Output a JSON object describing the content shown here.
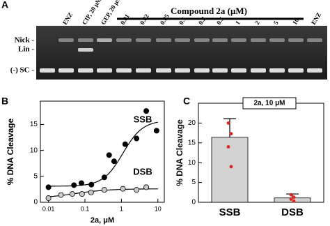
{
  "gel": {
    "label": "A",
    "title": "Compound 2a (μM)",
    "lanes": [
      "ENZ",
      "CIP, 20 μM",
      "GEP, 20 μM",
      "0.01",
      "0.02",
      "0.05",
      "0.1",
      "0.2",
      "0.5",
      "1",
      "2",
      "5",
      "10",
      "ENZ"
    ],
    "bands": [
      "Nick -",
      "Lin -",
      "(-) SC -"
    ]
  },
  "chart_data": [
    {
      "type": "scatter",
      "label": "B",
      "xlabel": "2a, μM",
      "ylabel": "% DNA Cleavage",
      "x_scale": "log",
      "xlim": [
        0.006,
        15
      ],
      "xticks": [
        0.01,
        0.1,
        1,
        10
      ],
      "ylim": [
        0,
        19.5
      ],
      "yticks": [
        0,
        5,
        10,
        15
      ],
      "series": [
        {
          "name": "SSB",
          "color": "#000000",
          "x": [
            0.01,
            0.05,
            0.08,
            0.15,
            0.34,
            0.46,
            0.63,
            1.27,
            2.6,
            4.8,
            9.2
          ],
          "values": [
            2.9,
            3.3,
            3.7,
            3.4,
            4.8,
            9.1,
            7.9,
            11.2,
            12.3,
            17.6,
            13.8
          ]
        },
        {
          "name": "DSB",
          "color": "#c8c8c8",
          "x": [
            0.01,
            0.022,
            0.045,
            0.083,
            0.147,
            0.34,
            1.1,
            2.6,
            4.8
          ],
          "values": [
            0.8,
            1.4,
            1.6,
            1.6,
            1.9,
            2.4,
            2.6,
            2.4,
            2.9
          ]
        }
      ]
    },
    {
      "type": "bar",
      "label": "C",
      "ylabel": "% DNA Cleavage",
      "annotation": "2a, 10 μM",
      "categories": [
        "SSB",
        "DSB"
      ],
      "values": [
        16.4,
        1.1
      ],
      "errors": [
        4.7,
        1.0
      ],
      "color": "#d3d3d3",
      "ylim": [
        0,
        25
      ],
      "yticks": [
        0,
        5,
        10,
        15,
        20
      ],
      "replicates": {
        "color": "#e0231e",
        "values": [
          [
            20.0,
            17.3,
            14.0,
            9.0
          ],
          [
            1.9,
            1.3,
            0.8,
            0.3
          ]
        ]
      }
    }
  ]
}
